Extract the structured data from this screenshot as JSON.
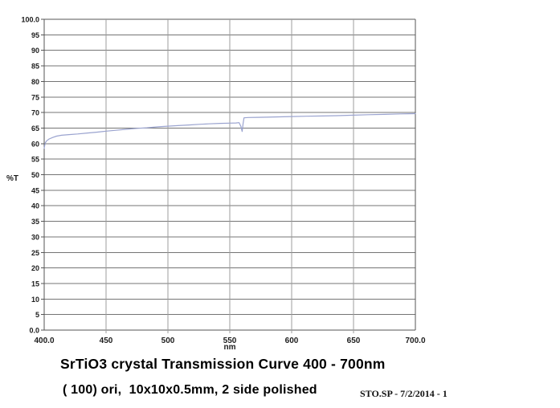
{
  "chart_data": {
    "type": "line",
    "title": "SrTiO3 crystal Transmission Curve 400 - 700nm",
    "subtitle": "( 100) ori,  10x10x0.5mm, 2 side polished",
    "note": "STO.SP - 7/2/2014 - 1",
    "xlabel": "nm",
    "ylabel": "%T",
    "xlim": [
      400,
      700
    ],
    "ylim": [
      0,
      100
    ],
    "grid": true,
    "legend": "none",
    "x_ticks": [
      400,
      450,
      500,
      550,
      600,
      650,
      700
    ],
    "x_tick_labels": [
      "400.0",
      "450",
      "500",
      "550",
      "600",
      "650",
      "700.0"
    ],
    "y_ticks": [
      0,
      5,
      10,
      15,
      20,
      25,
      30,
      35,
      40,
      45,
      50,
      55,
      60,
      65,
      70,
      75,
      80,
      85,
      90,
      95,
      100
    ],
    "y_tick_labels": [
      "0.0",
      "5",
      "10",
      "15",
      "20",
      "25",
      "30",
      "35",
      "40",
      "45",
      "50",
      "55",
      "60",
      "65",
      "70",
      "75",
      "80",
      "85",
      "90",
      "95",
      "100.0"
    ],
    "colors": {
      "line": "#9aa3cf",
      "grid_horizontal": "#757575",
      "grid_vertical": "#9c9c9c",
      "frame": "#555555",
      "text": "#000000",
      "background": "#ffffff"
    },
    "series": [
      {
        "name": "%T",
        "x": [
          400,
          400.5,
          401,
          402,
          404,
          407,
          410,
          414,
          420,
          427,
          435,
          443,
          450,
          458,
          466,
          475,
          483,
          492,
          500,
          508,
          517,
          525,
          533,
          542,
          550,
          555,
          557.5,
          559,
          560,
          560.8,
          561.5,
          565,
          572,
          580,
          590,
          600,
          612,
          625,
          637,
          650,
          662,
          675,
          688,
          700
        ],
        "y": [
          58.5,
          59.6,
          60.3,
          60.9,
          61.5,
          62.0,
          62.4,
          62.7,
          62.9,
          63.1,
          63.4,
          63.7,
          64.0,
          64.3,
          64.6,
          64.9,
          65.1,
          65.4,
          65.6,
          65.8,
          66.0,
          66.2,
          66.35,
          66.5,
          66.6,
          66.65,
          66.75,
          65.5,
          63.9,
          66.5,
          68.3,
          68.4,
          68.45,
          68.5,
          68.6,
          68.7,
          68.8,
          68.9,
          69.0,
          69.15,
          69.3,
          69.4,
          69.55,
          69.65
        ]
      }
    ]
  }
}
